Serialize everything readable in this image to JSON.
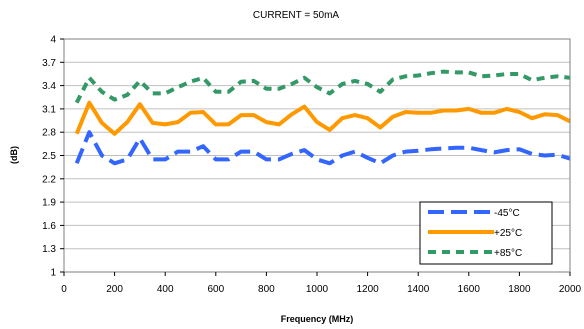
{
  "chart_data": {
    "type": "line",
    "title": "CURRENT =  50mA",
    "xlabel": "Frequency (MHz)",
    "ylabel": "(dB)",
    "xlim": [
      0,
      2000
    ],
    "ylim": [
      1,
      4
    ],
    "xticks": [
      "0",
      "200",
      "400",
      "600",
      "800",
      "1000",
      "1200",
      "1400",
      "1600",
      "1800",
      "2000"
    ],
    "yticks": [
      "1",
      "1.3",
      "1.6",
      "1.9",
      "2.2",
      "2.5",
      "2.8",
      "3.1",
      "3.4",
      "3.7",
      "4"
    ],
    "grid": "horizontal",
    "legend_position": "bottom-right",
    "series": [
      {
        "name": "-45°C",
        "color": "#3366ff",
        "dash": "long-dash",
        "x": [
          50,
          100,
          150,
          200,
          250,
          300,
          350,
          400,
          450,
          500,
          550,
          600,
          650,
          700,
          750,
          800,
          850,
          900,
          950,
          1000,
          1050,
          1100,
          1150,
          1200,
          1250,
          1300,
          1350,
          1400,
          1450,
          1500,
          1550,
          1600,
          1650,
          1700,
          1750,
          1800,
          1850,
          1900,
          1950,
          2000
        ],
        "values": [
          2.4,
          2.8,
          2.5,
          2.4,
          2.45,
          2.72,
          2.45,
          2.45,
          2.55,
          2.55,
          2.62,
          2.45,
          2.45,
          2.55,
          2.55,
          2.45,
          2.45,
          2.52,
          2.57,
          2.45,
          2.4,
          2.5,
          2.55,
          2.47,
          2.4,
          2.5,
          2.55,
          2.56,
          2.58,
          2.59,
          2.6,
          2.6,
          2.57,
          2.54,
          2.57,
          2.58,
          2.52,
          2.5,
          2.51,
          2.46
        ]
      },
      {
        "name": "+25°C",
        "color": "#ff9900",
        "dash": "solid",
        "x": [
          50,
          100,
          150,
          200,
          250,
          300,
          350,
          400,
          450,
          500,
          550,
          600,
          650,
          700,
          750,
          800,
          850,
          900,
          950,
          1000,
          1050,
          1100,
          1150,
          1200,
          1250,
          1300,
          1350,
          1400,
          1450,
          1500,
          1550,
          1600,
          1650,
          1700,
          1750,
          1800,
          1850,
          1900,
          1950,
          2000
        ],
        "values": [
          2.78,
          3.18,
          2.92,
          2.78,
          2.93,
          3.16,
          2.92,
          2.9,
          2.93,
          3.05,
          3.06,
          2.9,
          2.9,
          3.02,
          3.02,
          2.93,
          2.9,
          3.03,
          3.13,
          2.93,
          2.83,
          2.98,
          3.02,
          2.98,
          2.86,
          3.0,
          3.06,
          3.05,
          3.05,
          3.08,
          3.08,
          3.1,
          3.05,
          3.05,
          3.1,
          3.06,
          2.98,
          3.03,
          3.02,
          2.94
        ]
      },
      {
        "name": "+85°C",
        "color": "#339966",
        "dash": "short-dash",
        "x": [
          50,
          100,
          150,
          200,
          250,
          300,
          350,
          400,
          450,
          500,
          550,
          600,
          650,
          700,
          750,
          800,
          850,
          900,
          950,
          1000,
          1050,
          1100,
          1150,
          1200,
          1250,
          1300,
          1350,
          1400,
          1450,
          1500,
          1550,
          1600,
          1650,
          1700,
          1750,
          1800,
          1850,
          1900,
          1950,
          2000
        ],
        "values": [
          3.18,
          3.5,
          3.32,
          3.22,
          3.28,
          3.46,
          3.3,
          3.3,
          3.38,
          3.45,
          3.5,
          3.32,
          3.32,
          3.45,
          3.46,
          3.36,
          3.36,
          3.42,
          3.5,
          3.38,
          3.3,
          3.42,
          3.46,
          3.42,
          3.32,
          3.48,
          3.52,
          3.53,
          3.56,
          3.58,
          3.57,
          3.57,
          3.52,
          3.53,
          3.55,
          3.55,
          3.47,
          3.5,
          3.52,
          3.5
        ]
      }
    ]
  }
}
